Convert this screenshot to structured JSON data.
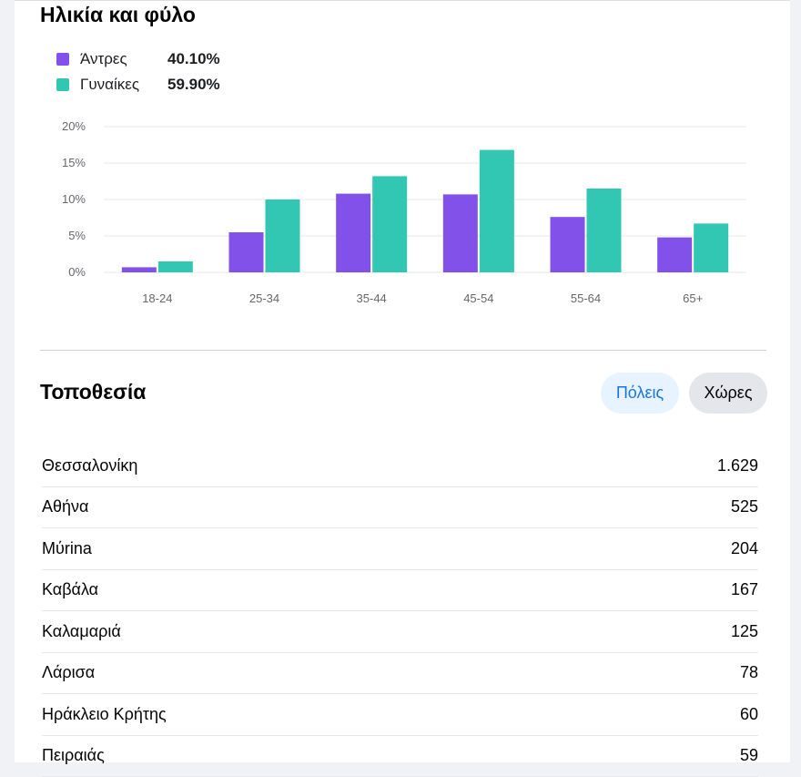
{
  "age_gender": {
    "title": "Ηλικία και φύλο",
    "legend": [
      {
        "label": "Άντρες",
        "value": "40.10%",
        "color": "#8251ea"
      },
      {
        "label": "Γυναίκες",
        "value": "59.90%",
        "color": "#31c7b3"
      }
    ]
  },
  "chart_data": {
    "type": "bar",
    "title": "",
    "xlabel": "",
    "ylabel": "",
    "categories": [
      "18-24",
      "25-34",
      "35-44",
      "45-54",
      "55-64",
      "65+"
    ],
    "series": [
      {
        "name": "Άντρες",
        "color": "#8251ea",
        "values": [
          0.7,
          5.5,
          10.8,
          10.7,
          7.6,
          4.8
        ]
      },
      {
        "name": "Γυναίκες",
        "color": "#31c7b3",
        "values": [
          1.5,
          10.0,
          13.2,
          16.8,
          11.5,
          6.7
        ]
      }
    ],
    "ylim": [
      0,
      20
    ],
    "yticks": [
      "0%",
      "5%",
      "10%",
      "15%",
      "20%"
    ],
    "ytick_values": [
      0,
      5,
      10,
      15,
      20
    ],
    "grid": true
  },
  "location": {
    "title": "Τοποθεσία",
    "tabs": [
      {
        "label": "Πόλεις",
        "active": true
      },
      {
        "label": "Χώρες",
        "active": false
      }
    ],
    "rows": [
      {
        "name": "Θεσσαλονίκη",
        "value": "1.629"
      },
      {
        "name": "Αθήνα",
        "value": "525"
      },
      {
        "name": "Μύrina",
        "value": "204"
      },
      {
        "name": "Καβάλα",
        "value": "167"
      },
      {
        "name": "Καλαμαριά",
        "value": "125"
      },
      {
        "name": "Λάρισα",
        "value": "78"
      },
      {
        "name": "Ηράκλειο Κρήτης",
        "value": "60"
      },
      {
        "name": "Πειραιάς",
        "value": "59"
      }
    ]
  }
}
